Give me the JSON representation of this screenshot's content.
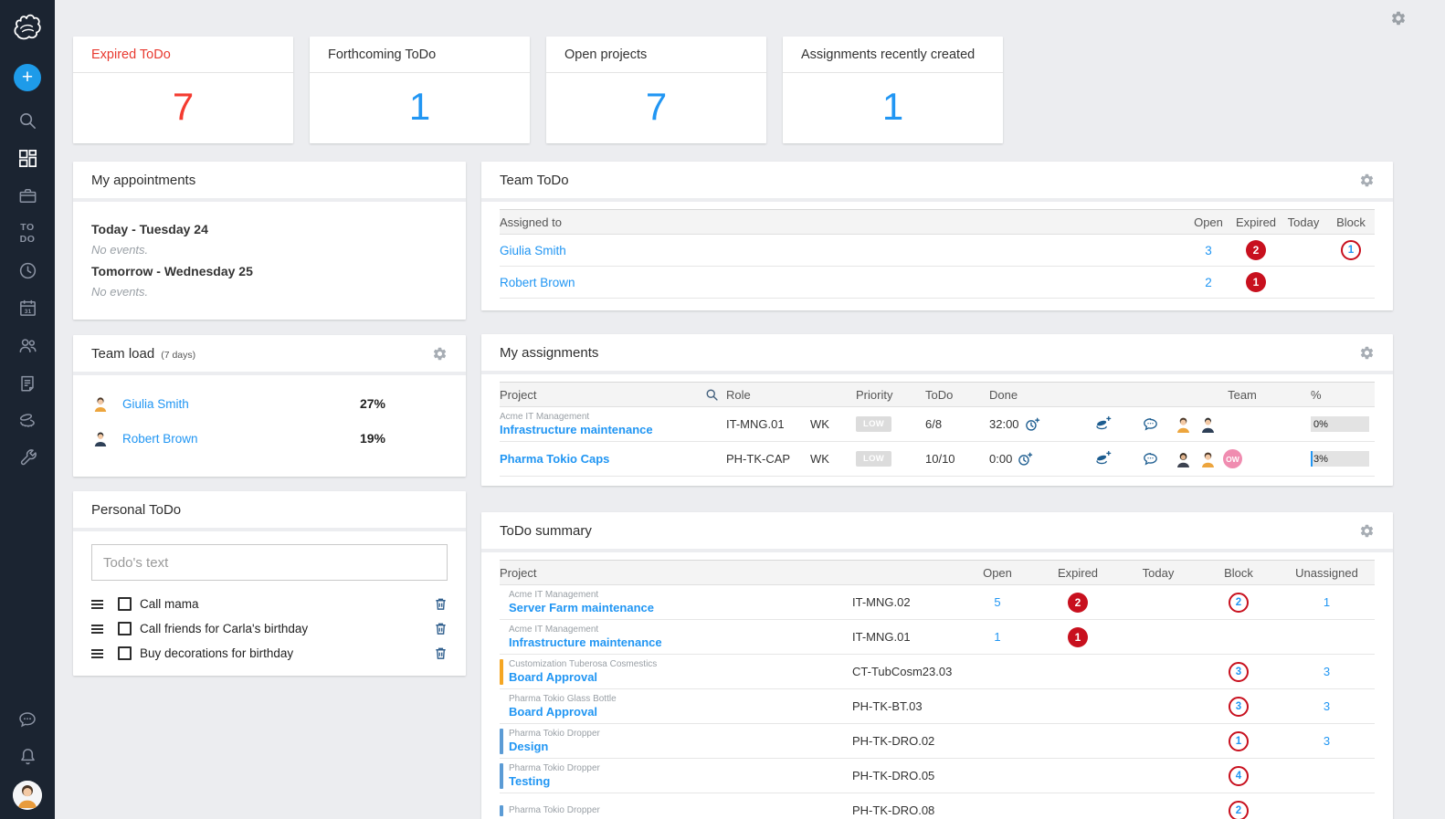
{
  "colors": {
    "accent_blue": "#2196f3",
    "red_text": "#e8392f",
    "badge_red": "#c8101e",
    "sidebar_bg": "#1b2431",
    "orange_bar": "#f5a623",
    "blue_bar": "#5b9bd5",
    "pink_badge": "#f08cb0"
  },
  "sidebar": {
    "logo_icon": "hand-sketch-logo",
    "todo_line1": "TO",
    "todo_line2": "DO",
    "icons": [
      "add",
      "search",
      "dashboard",
      "projects-briefcase",
      "todo",
      "clock",
      "calendar",
      "resources",
      "documents",
      "costs",
      "tools",
      "chat",
      "notifications",
      "user-avatar"
    ]
  },
  "topbar": {
    "settings_icon": "gear"
  },
  "stats": {
    "cards": [
      {
        "label": "Expired ToDo",
        "value": "7",
        "color": "red"
      },
      {
        "label": "Forthcoming ToDo",
        "value": "1",
        "color": "blue"
      },
      {
        "label": "Open projects",
        "value": "7",
        "color": "blue"
      },
      {
        "label": "Assignments recently created",
        "value": "1",
        "color": "blue"
      }
    ]
  },
  "appointments": {
    "title": "My appointments",
    "entries": [
      {
        "day": "Today - Tuesday 24",
        "events": "No events."
      },
      {
        "day": "Tomorrow - Wednesday 25",
        "events": "No events."
      }
    ]
  },
  "team_todo": {
    "title": "Team ToDo",
    "headers": {
      "assigned": "Assigned to",
      "open": "Open",
      "expired": "Expired",
      "today": "Today",
      "block": "Block"
    },
    "rows": [
      {
        "name": "Giulia Smith",
        "open": "3",
        "expired": "2",
        "block": "1"
      },
      {
        "name": "Robert Brown",
        "open": "2",
        "expired": "1"
      }
    ]
  },
  "team_load": {
    "title": "Team load",
    "subtitle": "(7 days)",
    "rows": [
      {
        "name": "Giulia Smith",
        "load": "27%",
        "avatar": "avatar-female-orange"
      },
      {
        "name": "Robert Brown",
        "load": "19%",
        "avatar": "avatar-male-navy"
      }
    ]
  },
  "my_assignments": {
    "title": "My assignments",
    "headers": {
      "project": "Project",
      "role": "Role",
      "priority": "Priority",
      "todo": "ToDo",
      "done": "Done",
      "team": "Team",
      "pct": "%"
    },
    "rows": [
      {
        "parent": "Acme IT Management",
        "name": "Infrastructure maintenance",
        "code": "IT-MNG.01",
        "role": "WK",
        "priority": "LOW",
        "todo": "6/8",
        "done": "32:00",
        "team_icons": [
          "avatar-female-orange",
          "avatar-male-navy"
        ],
        "percent_label": "0%",
        "progress": 0
      },
      {
        "name": "Pharma Tokio Caps",
        "code": "PH-TK-CAP",
        "role": "WK",
        "priority": "LOW",
        "todo": "10/10",
        "done": "0:00",
        "team_icons": [
          "avatar-male-dark",
          "avatar-female-orange"
        ],
        "ow": "OW",
        "percent_label": "3%",
        "progress": 3
      }
    ]
  },
  "personal_todo": {
    "title": "Personal ToDo",
    "placeholder": "Todo's text",
    "items": [
      {
        "text": "Call mama"
      },
      {
        "text": "Call friends for Carla's birthday"
      },
      {
        "text": "Buy decorations for birthday"
      }
    ]
  },
  "todo_summary": {
    "title": "ToDo summary",
    "headers": {
      "project": "Project",
      "open": "Open",
      "expired": "Expired",
      "today": "Today",
      "block": "Block",
      "unassigned": "Unassigned"
    },
    "rows": [
      {
        "parent": "Acme IT Management",
        "name": "Server Farm maintenance",
        "code": "IT-MNG.02",
        "open": "5",
        "expired": "2",
        "block": "2",
        "unassigned": "1"
      },
      {
        "parent": "Acme IT Management",
        "name": "Infrastructure maintenance",
        "code": "IT-MNG.01",
        "open": "1",
        "expired": "1"
      },
      {
        "parent": "Customization Tuberosa Cosmestics",
        "name": "Board Approval",
        "code": "CT-TubCosm23.03",
        "block": "3",
        "unassigned": "3",
        "bar": "orange"
      },
      {
        "parent": "Pharma Tokio Glass Bottle",
        "name": "Board Approval",
        "code": "PH-TK-BT.03",
        "block": "3",
        "unassigned": "3"
      },
      {
        "parent": "Pharma Tokio Dropper",
        "name": "Design",
        "code": "PH-TK-DRO.02",
        "block": "1",
        "unassigned": "3",
        "bar": "blue"
      },
      {
        "parent": "Pharma Tokio Dropper",
        "name": "Testing",
        "code": "PH-TK-DRO.05",
        "block": "4",
        "bar": "blue"
      },
      {
        "parent": "Pharma Tokio Dropper",
        "name": "",
        "code": "PH-TK-DRO.08",
        "block": "2",
        "bar": "blue"
      }
    ]
  }
}
